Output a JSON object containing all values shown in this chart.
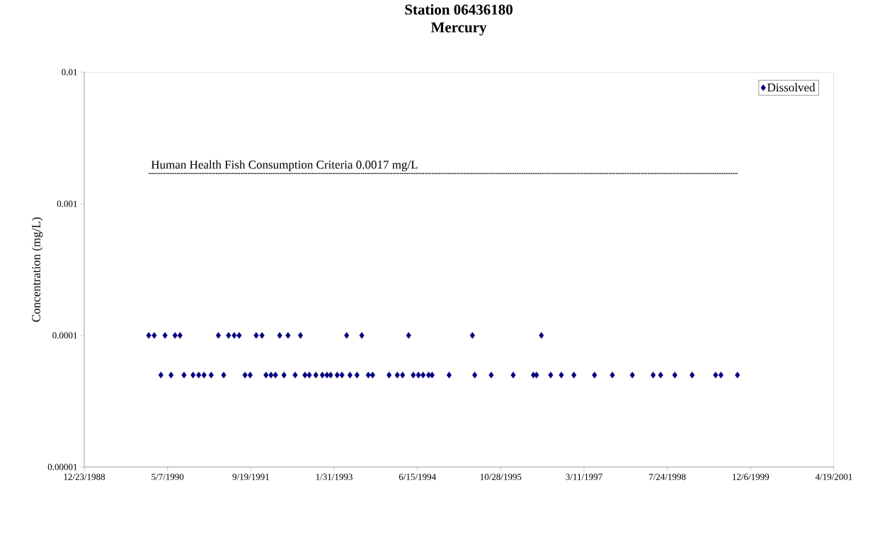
{
  "chart_data": {
    "type": "scatter",
    "title": "Station 06436180",
    "subtitle": "Mercury",
    "ylabel": "Concentration (mg/L)",
    "log": "y",
    "grid": false,
    "legend": "top right",
    "marker": "diamond",
    "xlim": [
      "1988-12-23",
      "2001-04-19"
    ],
    "xticks": [
      {
        "value": "1988-12-23",
        "label": "12/23/1988"
      },
      {
        "value": "1990-05-07",
        "label": "5/7/1990"
      },
      {
        "value": "1991-09-19",
        "label": "9/19/1991"
      },
      {
        "value": "1993-01-31",
        "label": "1/31/1993"
      },
      {
        "value": "1994-06-15",
        "label": "6/15/1994"
      },
      {
        "value": "1995-10-28",
        "label": "10/28/1995"
      },
      {
        "value": "1997-03-11",
        "label": "3/11/1997"
      },
      {
        "value": "1998-07-24",
        "label": "7/24/1998"
      },
      {
        "value": "1999-12-06",
        "label": "12/6/1999"
      },
      {
        "value": "2001-04-19",
        "label": "4/19/2001"
      }
    ],
    "ylim": [
      1e-05,
      0.01
    ],
    "yticks": [
      {
        "value": 1e-05,
        "label": "0.00001"
      },
      {
        "value": 0.0001,
        "label": "0.0001"
      },
      {
        "value": 0.001,
        "label": "0.001"
      },
      {
        "value": 0.01,
        "label": "0.01"
      }
    ],
    "ref_lines": [
      {
        "axis": "y",
        "value": 0.0017,
        "label": "Human Health Fish Consumption Criteria 0.0017 mg/L",
        "color": "#000000",
        "line_style": "dotted"
      }
    ],
    "series": [
      {
        "name": "Dissolved",
        "color": "#000080",
        "x": [
          "1990-01-14",
          "1990-02-16",
          "1990-04-22",
          "1990-06-21",
          "1990-07-21",
          "1991-03-08",
          "1991-05-08",
          "1991-06-11",
          "1991-07-11",
          "1991-10-21",
          "1991-11-25",
          "1992-03-10",
          "1992-04-29",
          "1992-07-13",
          "1993-04-16",
          "1993-07-16",
          "1994-04-23",
          "1995-05-11",
          "1996-06-28",
          "1990-03-28",
          "1990-05-28",
          "1990-08-14",
          "1990-10-07",
          "1990-11-10",
          "1990-12-12",
          "1991-01-24",
          "1991-04-09",
          "1991-08-15",
          "1991-09-15",
          "1991-12-19",
          "1992-01-18",
          "1992-02-14",
          "1992-04-05",
          "1992-06-11",
          "1992-08-09",
          "1992-09-04",
          "1992-10-13",
          "1992-11-21",
          "1992-12-19",
          "1993-01-10",
          "1993-02-18",
          "1993-03-19",
          "1993-05-06",
          "1993-06-17",
          "1993-08-24",
          "1993-09-19",
          "1993-12-27",
          "1994-02-14",
          "1994-03-18",
          "1994-05-21",
          "1994-06-21",
          "1994-07-19",
          "1994-08-21",
          "1994-09-11",
          "1994-12-22",
          "1995-05-25",
          "1995-09-01",
          "1996-01-11",
          "1996-05-11",
          "1996-05-30",
          "1996-08-23",
          "1996-10-26",
          "1997-01-09",
          "1997-05-13",
          "1997-08-28",
          "1997-12-26",
          "1998-04-30",
          "1998-06-14",
          "1998-09-07",
          "1998-12-20",
          "1999-05-10",
          "1999-06-11",
          "1999-09-18"
        ],
        "values": [
          0.0001,
          0.0001,
          0.0001,
          0.0001,
          0.0001,
          0.0001,
          0.0001,
          0.0001,
          0.0001,
          0.0001,
          0.0001,
          0.0001,
          0.0001,
          0.0001,
          0.0001,
          0.0001,
          0.0001,
          0.0001,
          0.0001,
          5e-05,
          5e-05,
          5e-05,
          5e-05,
          5e-05,
          5e-05,
          5e-05,
          5e-05,
          5e-05,
          5e-05,
          5e-05,
          5e-05,
          5e-05,
          5e-05,
          5e-05,
          5e-05,
          5e-05,
          5e-05,
          5e-05,
          5e-05,
          5e-05,
          5e-05,
          5e-05,
          5e-05,
          5e-05,
          5e-05,
          5e-05,
          5e-05,
          5e-05,
          5e-05,
          5e-05,
          5e-05,
          5e-05,
          5e-05,
          5e-05,
          5e-05,
          5e-05,
          5e-05,
          5e-05,
          5e-05,
          5e-05,
          5e-05,
          5e-05,
          5e-05,
          5e-05,
          5e-05,
          5e-05,
          5e-05,
          5e-05,
          5e-05,
          5e-05,
          5e-05,
          5e-05,
          5e-05
        ]
      }
    ]
  }
}
